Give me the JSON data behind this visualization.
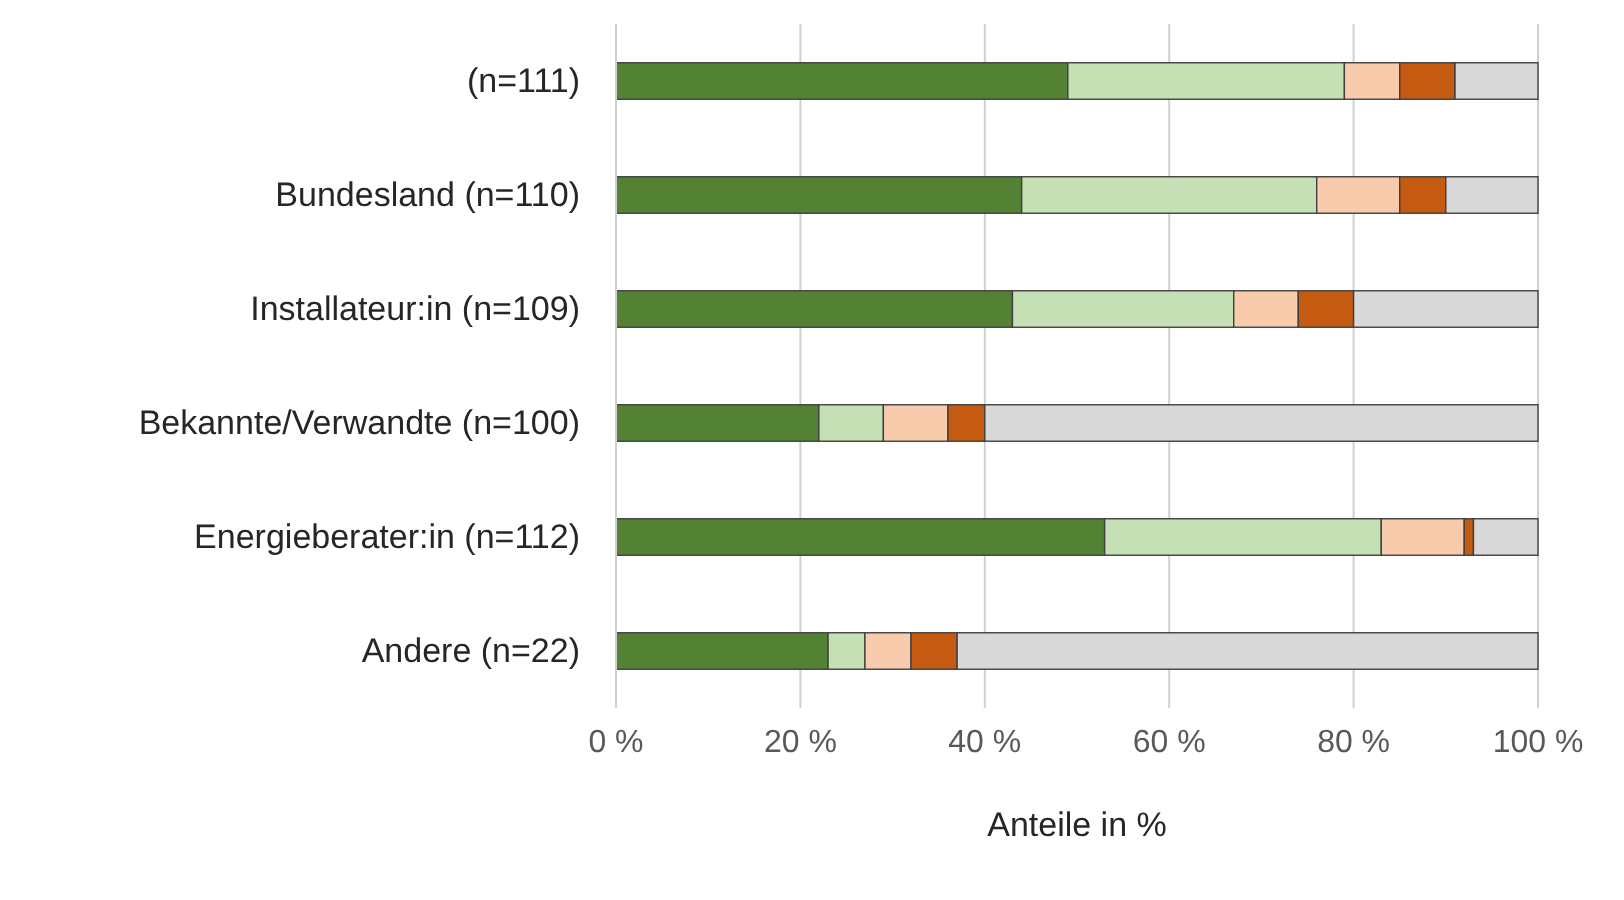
{
  "chart_data": {
    "type": "bar",
    "orientation": "horizontal",
    "stacked": true,
    "xlabel": "Anteile in %",
    "categories": [
      "(n=111)",
      "Bundesland (n=110)",
      "Installateur:in (n=109)",
      "Bekannte/Verwandte (n=100)",
      "Energieberater:in (n=112)",
      "Andere (n=22)"
    ],
    "series": [
      {
        "color": "#548235",
        "values": [
          49,
          44,
          43,
          22,
          53,
          23
        ]
      },
      {
        "color": "#c5e0b4",
        "values": [
          30,
          32,
          24,
          7,
          30,
          4
        ]
      },
      {
        "color": "#f8cbad",
        "values": [
          6,
          9,
          7,
          7,
          9,
          5
        ]
      },
      {
        "color": "#c55a11",
        "values": [
          6,
          5,
          6,
          4,
          1,
          5
        ]
      },
      {
        "color": "#d9d9d9",
        "values": [
          9,
          10,
          20,
          60,
          7,
          63
        ]
      }
    ],
    "xlim": [
      0,
      100
    ],
    "xticks": [
      {
        "value": 0,
        "label": "0 %"
      },
      {
        "value": 20,
        "label": "20 %"
      },
      {
        "value": 40,
        "label": "40 %"
      },
      {
        "value": 60,
        "label": "60 %"
      },
      {
        "value": 80,
        "label": "80 %"
      },
      {
        "value": 100,
        "label": "100 %"
      }
    ],
    "grid": "x"
  }
}
